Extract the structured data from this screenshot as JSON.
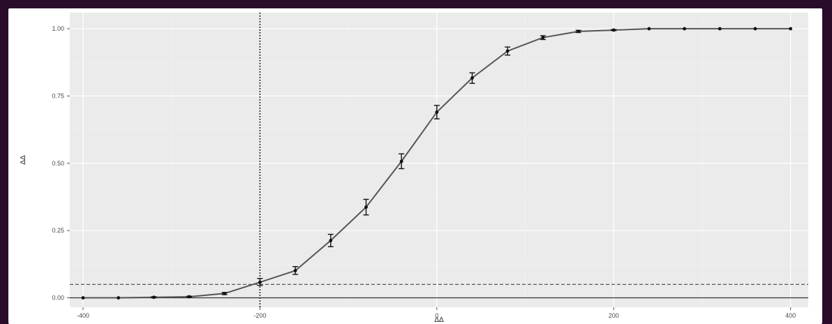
{
  "chart_data": {
    "type": "line",
    "title": "",
    "xlabel": "ΔΔ",
    "ylabel": "ΔΔ",
    "x_ticks": [
      {
        "value": -400,
        "label": "-400"
      },
      {
        "value": -200,
        "label": "-200"
      },
      {
        "value": 0,
        "label": "0"
      },
      {
        "value": 200,
        "label": "200"
      },
      {
        "value": 400,
        "label": "400"
      }
    ],
    "y_ticks": [
      {
        "value": 0.0,
        "label": "0.00"
      },
      {
        "value": 0.25,
        "label": "0.25"
      },
      {
        "value": 0.5,
        "label": "0.50"
      },
      {
        "value": 0.75,
        "label": "0.75"
      },
      {
        "value": 1.0,
        "label": "1.00"
      }
    ],
    "xlim": [
      -415,
      420
    ],
    "ylim": [
      -0.035,
      1.06
    ],
    "grid": true,
    "reference_lines": {
      "vertical_dotted_x": -200,
      "horizontal_dashed_y": 0.05,
      "horizontal_solid_y": 0.0
    },
    "series": [
      {
        "x": [
          -400,
          -360,
          -320,
          -280,
          -240,
          -200,
          -160,
          -120,
          -80,
          -40,
          0,
          40,
          80,
          120,
          160,
          200,
          240,
          280,
          320,
          360,
          400
        ],
        "y": [
          0.0,
          0.0,
          0.002,
          0.004,
          0.016,
          0.058,
          0.101,
          0.213,
          0.337,
          0.507,
          0.69,
          0.817,
          0.917,
          0.967,
          0.99,
          0.995,
          1.0,
          1.0,
          1.0,
          1.0,
          1.0
        ],
        "ylow": [
          0.0,
          0.0,
          0.0,
          0.003,
          0.012,
          0.046,
          0.087,
          0.19,
          0.308,
          0.48,
          0.665,
          0.797,
          0.902,
          0.96,
          0.986,
          0.993,
          1.0,
          1.0,
          1.0,
          1.0,
          1.0
        ],
        "yhigh": [
          0.0,
          0.0,
          0.004,
          0.006,
          0.02,
          0.072,
          0.116,
          0.236,
          0.366,
          0.535,
          0.715,
          0.836,
          0.932,
          0.974,
          0.994,
          0.997,
          1.0,
          1.0,
          1.0,
          1.0,
          1.0
        ]
      }
    ]
  }
}
